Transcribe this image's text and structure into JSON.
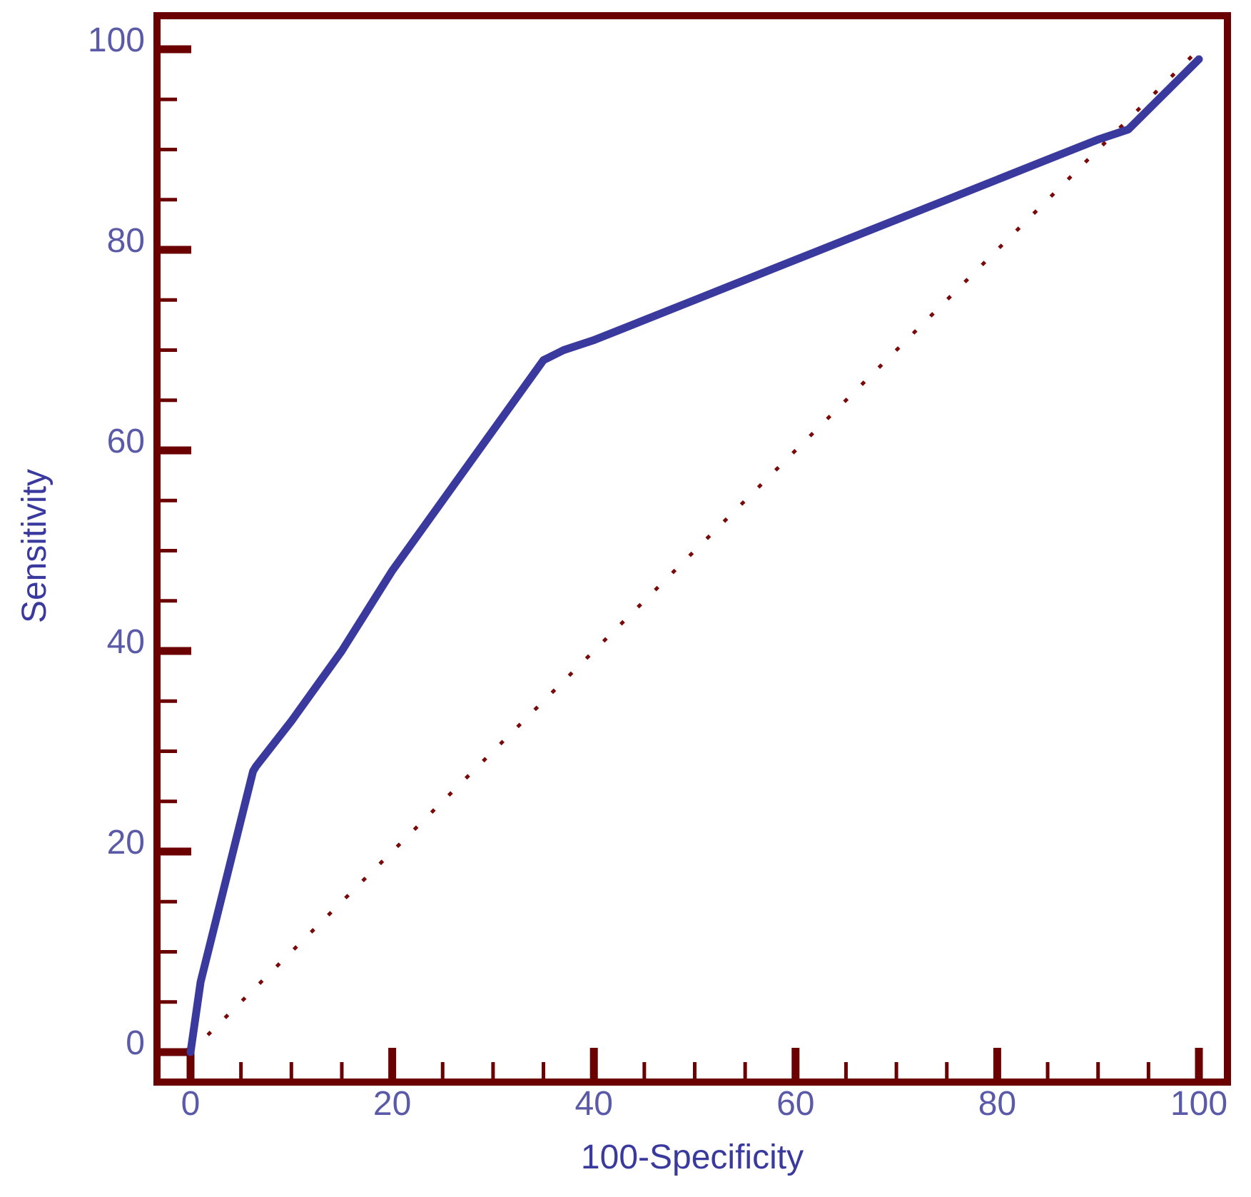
{
  "chart_data": {
    "type": "line",
    "title": "",
    "xlabel": "100-Specificity",
    "ylabel": "Sensitivity",
    "xlim": [
      0,
      100
    ],
    "ylim": [
      0,
      100
    ],
    "x_ticks": [
      "0",
      "20",
      "40",
      "60",
      "80",
      "100"
    ],
    "y_ticks": [
      "0",
      "20",
      "40",
      "60",
      "80",
      "100"
    ],
    "grid": false,
    "legend": "none",
    "series": [
      {
        "style": "solid",
        "color": "#3a3a9e",
        "x": [
          0,
          1,
          6.2,
          6.5,
          10,
          15,
          20,
          25,
          30,
          35,
          37,
          40,
          45,
          50,
          55,
          60,
          65,
          70,
          75,
          80,
          85,
          90,
          93,
          100
        ],
        "y": [
          0,
          7,
          28,
          28.5,
          33,
          40,
          48,
          55,
          62,
          69,
          70,
          71,
          73,
          75,
          77,
          79,
          81,
          83,
          85,
          87,
          89,
          91,
          92,
          99
        ]
      },
      {
        "style": "dotted",
        "color": "#7a0a0a",
        "x": [
          0,
          100
        ],
        "y": [
          0,
          100
        ]
      }
    ],
    "colors": {
      "frame": "#6b0000",
      "curve": "#3a3a9e",
      "tick_text": "#5a5aa8",
      "axis_title": "#3a3a9e"
    }
  }
}
